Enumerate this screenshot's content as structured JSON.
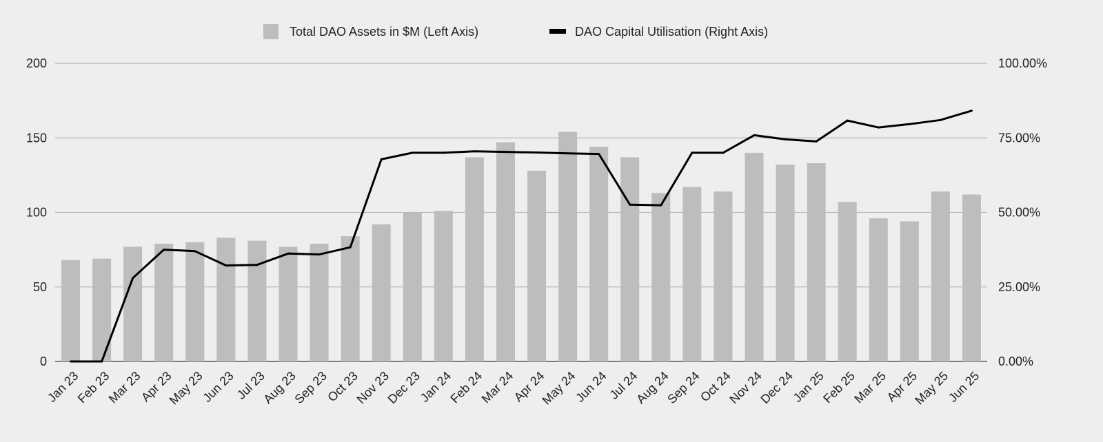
{
  "chart_data": {
    "type": "bar",
    "categories": [
      "Jan 23",
      "Feb 23",
      "Mar 23",
      "Apr 23",
      "May 23",
      "Jun 23",
      "Jul 23",
      "Aug 23",
      "Sep 23",
      "Oct 23",
      "Nov 23",
      "Dec 23",
      "Jan 24",
      "Feb 24",
      "Mar 24",
      "Apr 24",
      "May 24",
      "Jun 24",
      "Jul 24",
      "Aug 24",
      "Sep 24",
      "Oct 24",
      "Nov 24",
      "Dec 24",
      "Jan 25",
      "Feb 25",
      "Mar 25",
      "Apr 25",
      "May 25",
      "Jun 25"
    ],
    "series": [
      {
        "name": "Total DAO Assets in $M (Left Axis)",
        "type": "bar",
        "axis": "left",
        "color": "#bdbdbd",
        "values": [
          68,
          69,
          77,
          79,
          80,
          83,
          81,
          77,
          79,
          84,
          92,
          100,
          101,
          137,
          147,
          128,
          154,
          144,
          137,
          113,
          117,
          114,
          140,
          132,
          133,
          107,
          96,
          94,
          114,
          112
        ]
      },
      {
        "name": "DAO Capital Utilisation (Right Axis)",
        "type": "line",
        "axis": "right",
        "color": "#000000",
        "values": [
          0.0,
          0.0,
          28.0,
          37.5,
          37.0,
          32.2,
          32.4,
          36.2,
          35.9,
          38.3,
          67.8,
          70.0,
          70.0,
          70.5,
          70.3,
          70.1,
          69.8,
          69.6,
          52.6,
          52.4,
          70.0,
          70.0,
          75.9,
          74.5,
          73.8,
          80.8,
          78.5,
          79.6,
          81.0,
          84.1
        ]
      }
    ],
    "y_left": {
      "ticks": [
        "0",
        "50",
        "100",
        "150",
        "200"
      ],
      "ylim": [
        0,
        200
      ]
    },
    "y_right": {
      "ticks": [
        "0.00%",
        "25.00%",
        "50.00%",
        "75.00%",
        "100.00%"
      ],
      "ylim": [
        0,
        100
      ]
    },
    "grid": true,
    "legend_position": "top-center"
  }
}
